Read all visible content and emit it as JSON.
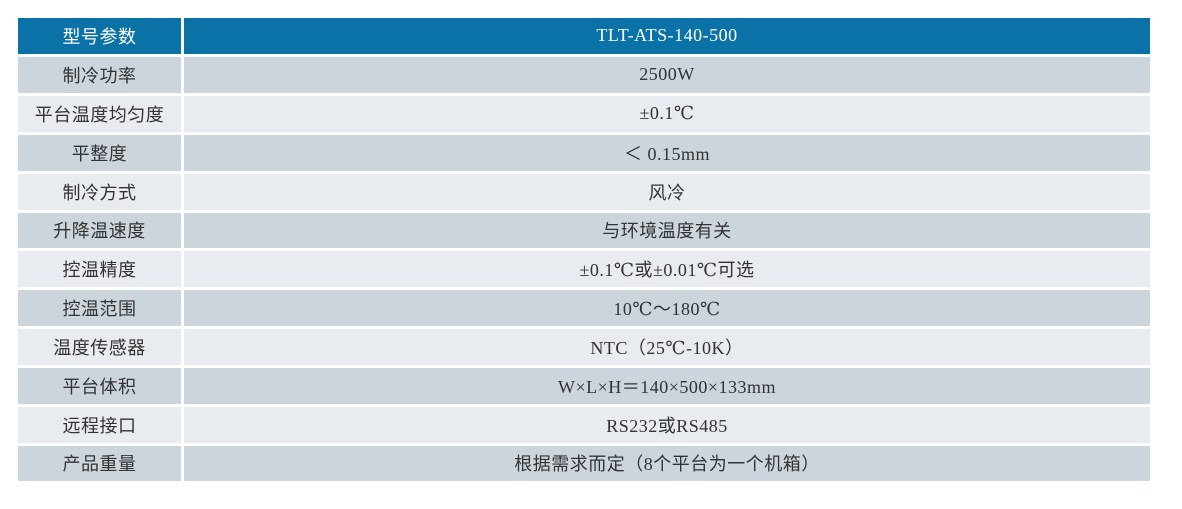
{
  "table": {
    "header": {
      "param_label": "型号参数",
      "model_value": "TLT-ATS-140-500"
    },
    "rows": [
      {
        "label": "制冷功率",
        "value": "2500W"
      },
      {
        "label": "平台温度均匀度",
        "value": "±0.1℃"
      },
      {
        "label": "平整度",
        "value": "＜ 0.15mm"
      },
      {
        "label": "制冷方式",
        "value": "风冷"
      },
      {
        "label": "升降温速度",
        "value": "与环境温度有关"
      },
      {
        "label": "控温精度",
        "value": "±0.1℃或±0.01℃可选"
      },
      {
        "label": "控温范围",
        "value": "10℃～180℃"
      },
      {
        "label": "温度传感器",
        "value": "NTC（25℃-10K）"
      },
      {
        "label": "平台体积",
        "value": "W×L×H＝140×500×133mm"
      },
      {
        "label": "远程接口",
        "value": "RS232或RS485"
      },
      {
        "label": "产品重量",
        "value": "根据需求而定（8个平台为一个机箱）"
      }
    ]
  },
  "colors": {
    "header_background": "#0a72a6",
    "header_text": "#ffffff",
    "row_dark_background": "#ccd4dc",
    "row_light_background": "#e8ebef",
    "body_text": "#333333",
    "grid_line": "#ffffff"
  }
}
